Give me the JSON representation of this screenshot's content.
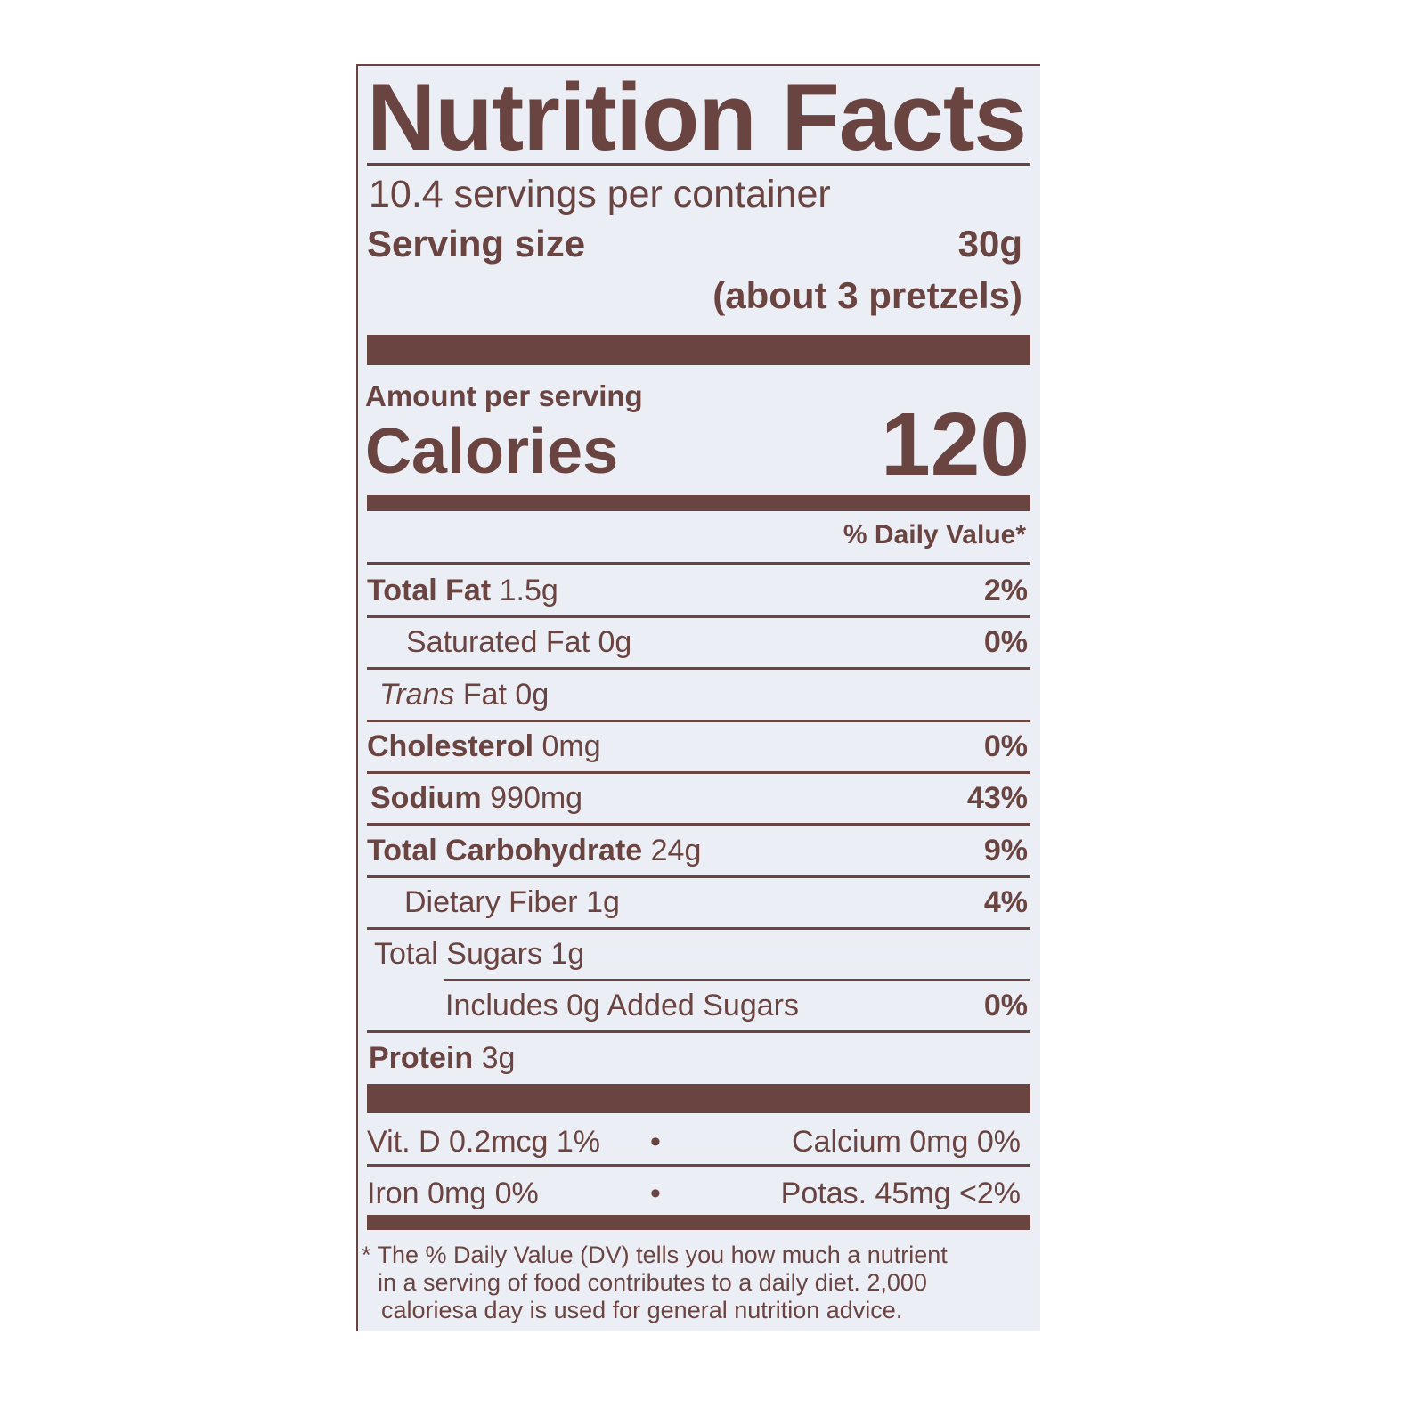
{
  "title": "Nutrition Facts",
  "servings_per_container": "10.4 servings per container",
  "serving_size_label": "Serving size",
  "serving_size_value": "30g",
  "serving_size_note": "(about 3 pretzels)",
  "amount_per_serving": "Amount per serving",
  "calories_label": "Calories",
  "calories_value": "120",
  "daily_value_header": "% Daily Value*",
  "nutrients": [
    {
      "name": "Total Fat",
      "amount": "1.5g",
      "dv": "2%"
    },
    {
      "name": "Saturated Fat",
      "amount": "0g",
      "dv": "0%"
    },
    {
      "name": "Trans",
      "name_rest": "Fat",
      "amount": "0g",
      "dv": ""
    },
    {
      "name": "Cholesterol",
      "amount": "0mg",
      "dv": "0%"
    },
    {
      "name": "Sodium",
      "amount": "990mg",
      "dv": "43%"
    },
    {
      "name": "Total Carbohydrate",
      "amount": "24g",
      "dv": "9%"
    },
    {
      "name": "Dietary Fiber",
      "amount": "1g",
      "dv": "4%"
    },
    {
      "name": "Total Sugars",
      "amount": "1g",
      "dv": ""
    },
    {
      "name": "Includes 0g Added Sugars",
      "amount": "",
      "dv": "0%"
    },
    {
      "name": "Protein",
      "amount": "3g",
      "dv": ""
    }
  ],
  "vitamins": [
    {
      "left": "Vit. D 0.2mcg 1%",
      "right": "Calcium 0mg 0%"
    },
    {
      "left": "Iron 0mg 0%",
      "right": "Potas. 45mg <2%"
    }
  ],
  "bullet": "•",
  "footnote": [
    "* The % Daily Value (DV) tells you how much a nutrient",
    "in a serving of food contributes to a daily diet. 2,000",
    "caloriesa day is used for general nutrition advice."
  ],
  "colors": {
    "ink": "#6a4440",
    "background": "#eceef6"
  }
}
